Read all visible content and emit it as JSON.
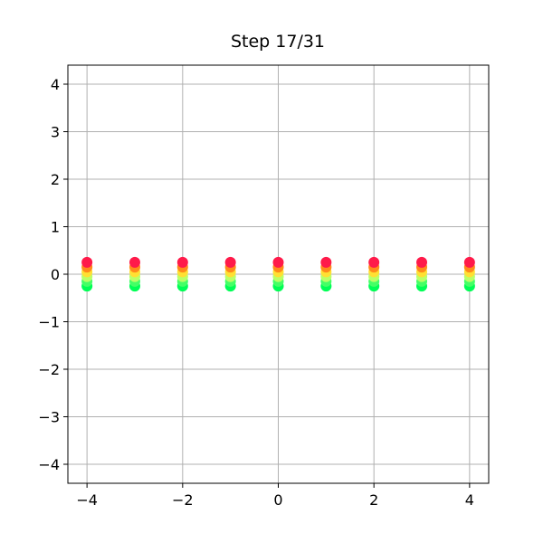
{
  "chart_data": {
    "type": "scatter",
    "title": "Step 17/31",
    "xlim": [
      -4.4,
      4.4
    ],
    "ylim": [
      -4.4,
      4.4
    ],
    "xticks": [
      {
        "value": -4,
        "label": "−4"
      },
      {
        "value": -2,
        "label": "−2"
      },
      0,
      2,
      4
    ],
    "yticks": [
      {
        "value": -4,
        "label": "−4"
      },
      {
        "value": -3,
        "label": "−3"
      },
      {
        "value": -2,
        "label": "−2"
      },
      {
        "value": -1,
        "label": "−1"
      },
      0,
      1,
      2,
      3,
      4
    ],
    "grid": true,
    "series": [
      {
        "color": "#00ff55",
        "x": [
          -4,
          -3,
          -2,
          -1,
          0,
          1,
          2,
          3,
          4
        ],
        "values": [
          -0.25,
          -0.25,
          -0.25,
          -0.25,
          -0.25,
          -0.25,
          -0.25,
          -0.25,
          -0.25
        ]
      },
      {
        "color": "#44ff66",
        "x": [
          -4,
          -3,
          -2,
          -1,
          0,
          1,
          2,
          3,
          4
        ],
        "values": [
          -0.15,
          -0.15,
          -0.15,
          -0.15,
          -0.15,
          -0.15,
          -0.15,
          -0.15,
          -0.15
        ]
      },
      {
        "color": "#bbff66",
        "x": [
          -4,
          -3,
          -2,
          -1,
          0,
          1,
          2,
          3,
          4
        ],
        "values": [
          -0.05,
          -0.05,
          -0.05,
          -0.05,
          -0.05,
          -0.05,
          -0.05,
          -0.05,
          -0.05
        ]
      },
      {
        "color": "#ffe033",
        "x": [
          -4,
          -3,
          -2,
          -1,
          0,
          1,
          2,
          3,
          4
        ],
        "values": [
          0.05,
          0.05,
          0.05,
          0.05,
          0.05,
          0.05,
          0.05,
          0.05,
          0.05
        ]
      },
      {
        "color": "#ff8a1a",
        "x": [
          -4,
          -3,
          -2,
          -1,
          0,
          1,
          2,
          3,
          4
        ],
        "values": [
          0.15,
          0.15,
          0.15,
          0.15,
          0.15,
          0.15,
          0.15,
          0.15,
          0.15
        ]
      },
      {
        "color": "#ff1a4a",
        "x": [
          -4,
          -3,
          -2,
          -1,
          0,
          1,
          2,
          3,
          4
        ],
        "values": [
          0.25,
          0.25,
          0.25,
          0.25,
          0.25,
          0.25,
          0.25,
          0.25,
          0.25
        ]
      }
    ]
  }
}
